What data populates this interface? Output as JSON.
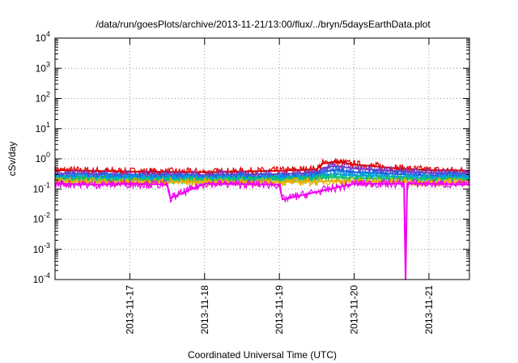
{
  "chart_data": {
    "type": "line",
    "title": "/data/run/goesPlots/archive/2013-11-21/13:00/flux/../bryn/5daysEarthData.plot",
    "xlabel": "Coordinated Universal Time (UTC)",
    "ylabel": "cSv/day",
    "y_scale": "log",
    "ylim": [
      0.0001,
      10000
    ],
    "yticks": [
      {
        "base": "10",
        "exp": "4"
      },
      {
        "base": "10",
        "exp": "3"
      },
      {
        "base": "10",
        "exp": "2"
      },
      {
        "base": "10",
        "exp": "1"
      },
      {
        "base": "10",
        "exp": "0"
      },
      {
        "base": "10",
        "exp": "-1"
      },
      {
        "base": "10",
        "exp": "-2"
      },
      {
        "base": "10",
        "exp": "-3"
      },
      {
        "base": "10",
        "exp": "-4"
      }
    ],
    "xlim": [
      "2013-11-16T00:00",
      "2013-11-21T13:00"
    ],
    "xticks": [
      "2013-11-17",
      "2013-11-18",
      "2013-11-19",
      "2013-11-20",
      "2013-11-21"
    ],
    "grid": "dotted",
    "legend": "none",
    "series": [
      {
        "color": "#e00000",
        "x": [
          "2013-11-16T00:00",
          "2013-11-17T00:00",
          "2013-11-18T00:00",
          "2013-11-19T00:00",
          "2013-11-19T12:00",
          "2013-11-19T14:00",
          "2013-11-19T18:00",
          "2013-11-20T00:00",
          "2013-11-20T12:00",
          "2013-11-21T00:00",
          "2013-11-21T13:00"
        ],
        "y": [
          0.42,
          0.38,
          0.36,
          0.4,
          0.45,
          0.7,
          0.8,
          0.65,
          0.5,
          0.42,
          0.4
        ]
      },
      {
        "color": "#7a3cc8",
        "x": [
          "2013-11-16T00:00",
          "2013-11-17T00:00",
          "2013-11-18T00:00",
          "2013-11-19T00:00",
          "2013-11-19T12:00",
          "2013-11-19T14:00",
          "2013-11-19T18:00",
          "2013-11-20T00:00",
          "2013-11-20T12:00",
          "2013-11-21T00:00",
          "2013-11-21T13:00"
        ],
        "y": [
          0.32,
          0.3,
          0.29,
          0.31,
          0.34,
          0.5,
          0.58,
          0.48,
          0.4,
          0.34,
          0.33
        ]
      },
      {
        "color": "#1f5fe0",
        "x": [
          "2013-11-16T00:00",
          "2013-11-17T00:00",
          "2013-11-18T00:00",
          "2013-11-19T00:00",
          "2013-11-19T12:00",
          "2013-11-19T14:00",
          "2013-11-19T18:00",
          "2013-11-20T00:00",
          "2013-11-20T12:00",
          "2013-11-21T00:00",
          "2013-11-21T13:00"
        ],
        "y": [
          0.27,
          0.26,
          0.25,
          0.26,
          0.28,
          0.38,
          0.42,
          0.36,
          0.32,
          0.28,
          0.27
        ]
      },
      {
        "color": "#00a0e0",
        "x": [
          "2013-11-16T00:00",
          "2013-11-17T00:00",
          "2013-11-18T00:00",
          "2013-11-19T00:00",
          "2013-11-19T12:00",
          "2013-11-19T14:00",
          "2013-11-19T18:00",
          "2013-11-20T00:00",
          "2013-11-20T12:00",
          "2013-11-21T00:00",
          "2013-11-21T13:00"
        ],
        "y": [
          0.24,
          0.23,
          0.22,
          0.23,
          0.24,
          0.29,
          0.31,
          0.28,
          0.26,
          0.24,
          0.24
        ]
      },
      {
        "color": "#10c070",
        "x": [
          "2013-11-16T00:00",
          "2013-11-17T00:00",
          "2013-11-18T00:00",
          "2013-11-19T00:00",
          "2013-11-19T12:00",
          "2013-11-19T14:00",
          "2013-11-19T18:00",
          "2013-11-20T00:00",
          "2013-11-20T12:00",
          "2013-11-21T00:00",
          "2013-11-21T13:00"
        ],
        "y": [
          0.21,
          0.2,
          0.2,
          0.2,
          0.21,
          0.24,
          0.25,
          0.23,
          0.22,
          0.21,
          0.21
        ]
      },
      {
        "color": "#e8b000",
        "x": [
          "2013-11-16T00:00",
          "2013-11-17T00:00",
          "2013-11-18T00:00",
          "2013-11-19T00:00",
          "2013-11-19T12:00",
          "2013-11-19T14:00",
          "2013-11-19T18:00",
          "2013-11-20T00:00",
          "2013-11-20T12:00",
          "2013-11-21T00:00",
          "2013-11-21T13:00"
        ],
        "y": [
          0.175,
          0.17,
          0.17,
          0.17,
          0.175,
          0.18,
          0.185,
          0.18,
          0.175,
          0.17,
          0.17
        ]
      },
      {
        "color": "#f000f0",
        "x": [
          "2013-11-16T00:00",
          "2013-11-16T12:00",
          "2013-11-17T00:00",
          "2013-11-17T12:00",
          "2013-11-17T13:00",
          "2013-11-18T00:00",
          "2013-11-19T00:00",
          "2013-11-19T01:00",
          "2013-11-20T00:00",
          "2013-11-20T16:00",
          "2013-11-20T16:30",
          "2013-11-20T17:00",
          "2013-11-21T00:00",
          "2013-11-21T13:00"
        ],
        "y": [
          0.15,
          0.14,
          0.15,
          0.14,
          0.05,
          0.15,
          0.14,
          0.045,
          0.15,
          0.15,
          0.0001,
          0.15,
          0.15,
          0.14
        ]
      }
    ]
  }
}
